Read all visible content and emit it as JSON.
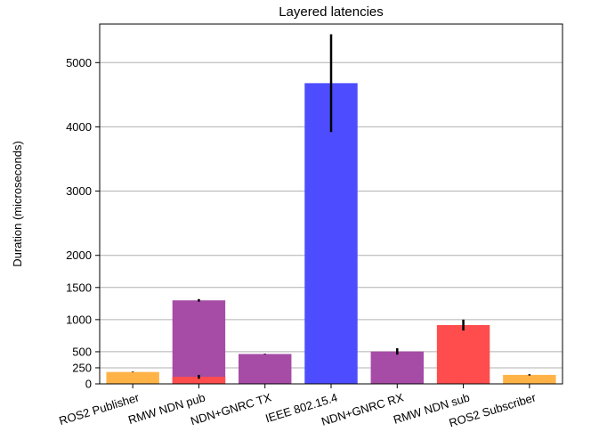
{
  "chart_data": {
    "type": "bar",
    "title": "Layered latencies",
    "ylabel": "Duration (microseconds)",
    "xlabel": "",
    "ylim": [
      0,
      5600
    ],
    "yticks": [
      0,
      250,
      500,
      1000,
      1500,
      2000,
      3000,
      4000,
      5000
    ],
    "grid": true,
    "categories": [
      "ROS2 Publisher",
      "RMW NDN pub",
      "NDN+GNRC TX",
      "IEEE 802.15.4",
      "NDN+GNRC RX",
      "RMW NDN sub",
      "ROS2 Subscriber"
    ],
    "bars": [
      {
        "category": "ROS2 Publisher",
        "value": 185,
        "color": "#ffb347",
        "error": 5
      },
      {
        "category": "RMW NDN pub",
        "value": 1300,
        "color": "#a64ca6",
        "error": 20
      },
      {
        "category": "RMW NDN pub",
        "value": 110,
        "color": "#ff4d4d",
        "error": 30
      },
      {
        "category": "NDN+GNRC TX",
        "value": 465,
        "color": "#a64ca6",
        "error": 5
      },
      {
        "category": "IEEE 802.15.4",
        "value": 4680,
        "color": "#4d4dff",
        "error": 760
      },
      {
        "category": "NDN+GNRC RX",
        "value": 505,
        "color": "#a64ca6",
        "error": 50
      },
      {
        "category": "RMW NDN sub",
        "value": 915,
        "color": "#ff4d4d",
        "error": 85
      },
      {
        "category": "ROS2 Subscriber",
        "value": 140,
        "color": "#ffb347",
        "error": 10
      }
    ]
  }
}
